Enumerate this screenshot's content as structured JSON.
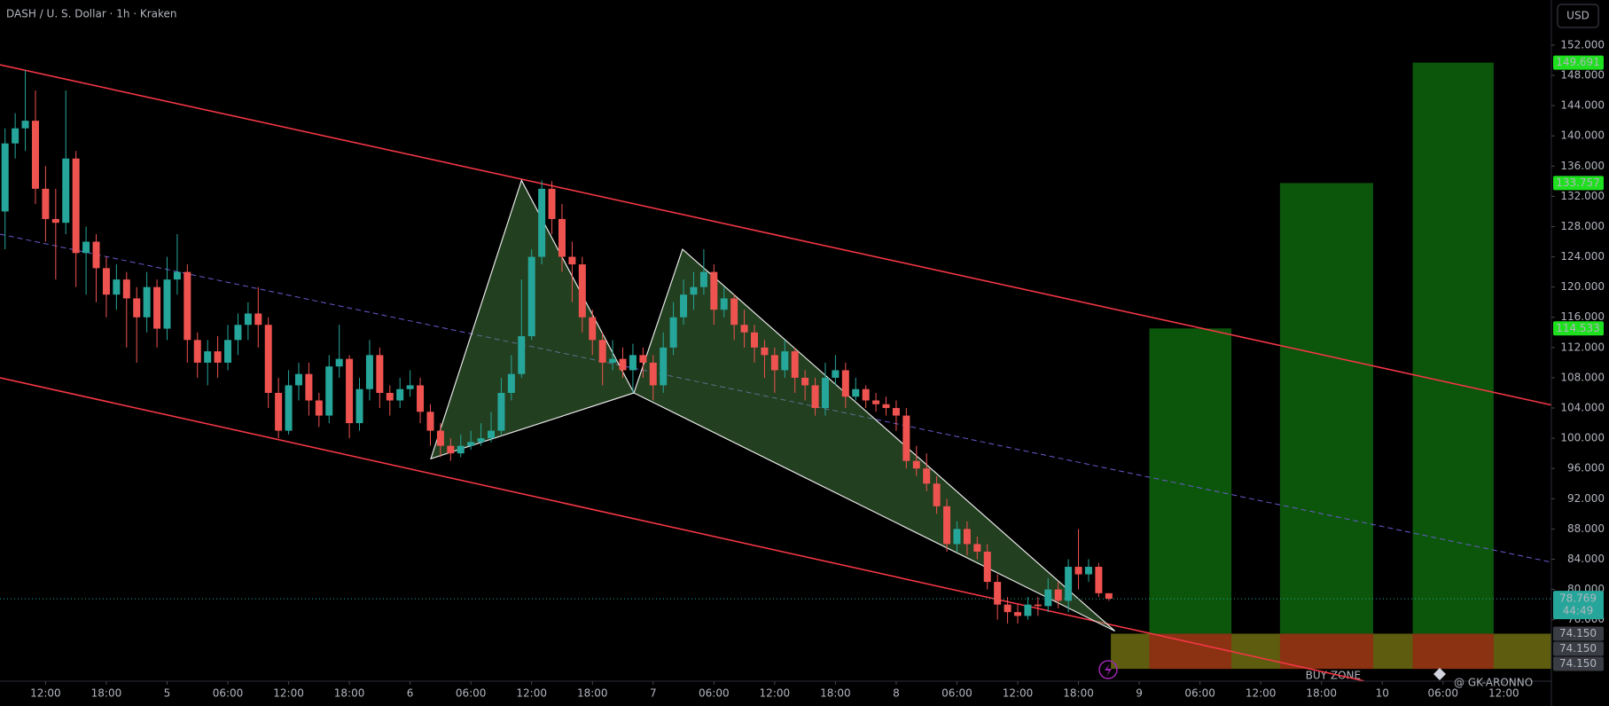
{
  "chart_data": {
    "type": "candlestick",
    "title": "DASH / U. S. Dollar · 1h · Kraken",
    "currency": "USD",
    "watermark": "@ GK-ARONNO",
    "up_color": "#26a69a",
    "down_color": "#ef5350",
    "grid": false,
    "xlim": [
      -0.5,
      152.7
    ],
    "ylim": [
      67.87,
      157.97
    ],
    "open": [
      130,
      139,
      141,
      142,
      133,
      129,
      128.5,
      137,
      124.5,
      126,
      122.5,
      119,
      121,
      118.5,
      116,
      120,
      114.5,
      121,
      122,
      113,
      110,
      111.5,
      110,
      113,
      115,
      116.5,
      115,
      106,
      101,
      107,
      108.5,
      105,
      103,
      109.5,
      110.5,
      102,
      106.5,
      111,
      106,
      105,
      106.5,
      107,
      103.5,
      101,
      99,
      98,
      99,
      99.5,
      100,
      101,
      106,
      108.5,
      113.5,
      124,
      133,
      129,
      124,
      123,
      116,
      113,
      110,
      110.5,
      109,
      111,
      110,
      107,
      112,
      116,
      119,
      120,
      122,
      117,
      118.5,
      115,
      114,
      112,
      111,
      109,
      111.5,
      108,
      107,
      104,
      108,
      109,
      105.5,
      106.5,
      105,
      104.5,
      104,
      103,
      97,
      96,
      94,
      91,
      86,
      88,
      86,
      85,
      81,
      78,
      77,
      76.5,
      78,
      77.8,
      80,
      78.5,
      83,
      82,
      83,
      79.5
    ],
    "high": [
      141,
      143,
      148.7,
      146,
      136,
      133,
      146,
      138,
      128,
      127,
      124,
      123,
      122,
      120,
      122,
      121,
      124,
      127,
      123,
      114,
      113,
      113.5,
      115,
      116.5,
      118,
      120,
      116,
      108,
      109,
      110,
      110,
      106,
      111,
      115,
      111,
      108,
      113,
      112,
      107,
      108,
      109,
      108,
      104.5,
      102,
      100,
      100.5,
      101,
      102,
      103.5,
      108,
      111,
      121,
      125,
      134.1,
      134,
      131,
      126,
      124,
      117,
      114,
      113,
      112,
      112.5,
      112,
      111,
      114,
      118,
      121,
      122,
      125,
      123,
      120,
      119,
      117,
      115,
      113,
      112,
      113,
      112,
      109,
      108,
      110,
      111,
      110,
      108,
      107,
      106,
      105.5,
      105,
      104,
      99,
      98,
      95,
      92,
      89,
      89,
      87,
      86,
      82,
      79,
      78,
      79,
      79,
      81.5,
      81,
      84,
      88,
      84,
      83.5,
      79.5
    ],
    "low": [
      125,
      137,
      138,
      131,
      126,
      121,
      127,
      120,
      119,
      118,
      116,
      117,
      112,
      110,
      114,
      112,
      113,
      119,
      110,
      108,
      107,
      108,
      109,
      111,
      113,
      112,
      104,
      100,
      100.5,
      105,
      103,
      101.5,
      102,
      108,
      100,
      101,
      105,
      104,
      103,
      104,
      105.5,
      102,
      99,
      97.5,
      97,
      97.5,
      98.5,
      99,
      99.5,
      100.5,
      105,
      108,
      113,
      123,
      127,
      122,
      118,
      114,
      111,
      107,
      109,
      108,
      106,
      108,
      105,
      106,
      111,
      115,
      117,
      119,
      115,
      116,
      113,
      112,
      110,
      108,
      106,
      108,
      106,
      105,
      103,
      103,
      107,
      104,
      105,
      104,
      103.5,
      103,
      101,
      96,
      95,
      93,
      90,
      85,
      85,
      84.5,
      84,
      80,
      76,
      75.5,
      75.5,
      76,
      76.5,
      77,
      77.5,
      77,
      80,
      81,
      79,
      78.5
    ],
    "close": [
      139,
      141,
      142,
      133,
      129,
      128.5,
      137,
      124.5,
      126,
      122.5,
      119,
      121,
      118.5,
      116,
      120,
      114.5,
      121,
      122,
      113,
      110,
      111.5,
      110,
      113,
      115,
      116.5,
      115,
      106,
      101,
      107,
      108.5,
      105,
      103,
      109.5,
      110.5,
      102,
      106.5,
      111,
      106,
      105,
      106.5,
      107,
      103.5,
      101,
      99,
      98,
      99,
      99.5,
      100,
      101,
      106,
      108.5,
      113.5,
      124,
      133,
      129,
      124,
      123,
      116,
      113,
      110,
      110.5,
      109,
      111,
      110,
      107,
      112,
      116,
      119,
      120,
      122,
      117,
      118.5,
      115,
      114,
      112,
      111,
      109,
      111.5,
      108,
      107,
      104,
      108,
      109,
      105.5,
      106.5,
      105,
      104.5,
      104,
      103,
      97,
      96,
      94,
      91,
      86,
      88,
      86,
      85,
      81,
      78,
      77,
      76.5,
      78,
      77.8,
      80,
      78.5,
      83,
      82,
      83,
      79.5,
      78.769
    ],
    "yticks": [
      {
        "value": 152,
        "label": "152.000"
      },
      {
        "value": 148,
        "label": "148.000"
      },
      {
        "value": 144,
        "label": "144.000"
      },
      {
        "value": 140,
        "label": "140.000"
      },
      {
        "value": 136,
        "label": "136.000"
      },
      {
        "value": 132,
        "label": "132.000"
      },
      {
        "value": 128,
        "label": "128.000"
      },
      {
        "value": 124,
        "label": "124.000"
      },
      {
        "value": 120,
        "label": "120.000"
      },
      {
        "value": 116,
        "label": "116.000"
      },
      {
        "value": 112,
        "label": "112.000"
      },
      {
        "value": 108,
        "label": "108.000"
      },
      {
        "value": 104,
        "label": "104.000"
      },
      {
        "value": 100,
        "label": "100.000"
      },
      {
        "value": 96,
        "label": "96.000"
      },
      {
        "value": 92,
        "label": "92.000"
      },
      {
        "value": 88,
        "label": "88.000"
      },
      {
        "value": 84,
        "label": "84.000"
      },
      {
        "value": 80,
        "label": "80.000"
      },
      {
        "value": 76,
        "label": "76.000"
      }
    ],
    "xticks": [
      {
        "value": 4,
        "label": "12:00"
      },
      {
        "value": 10,
        "label": "18:00"
      },
      {
        "value": 16,
        "label": "5"
      },
      {
        "value": 22,
        "label": "06:00"
      },
      {
        "value": 28,
        "label": "12:00"
      },
      {
        "value": 34,
        "label": "18:00"
      },
      {
        "value": 40,
        "label": "6"
      },
      {
        "value": 46,
        "label": "06:00"
      },
      {
        "value": 52,
        "label": "12:00"
      },
      {
        "value": 58,
        "label": "18:00"
      },
      {
        "value": 64,
        "label": "7"
      },
      {
        "value": 70,
        "label": "06:00"
      },
      {
        "value": 76,
        "label": "12:00"
      },
      {
        "value": 82,
        "label": "18:00"
      },
      {
        "value": 88,
        "label": "8"
      },
      {
        "value": 94,
        "label": "06:00"
      },
      {
        "value": 100,
        "label": "12:00"
      },
      {
        "value": 106,
        "label": "18:00"
      },
      {
        "value": 112,
        "label": "9"
      },
      {
        "value": 118,
        "label": "06:00"
      },
      {
        "value": 124,
        "label": "12:00"
      },
      {
        "value": 130,
        "label": "18:00"
      },
      {
        "value": 136,
        "label": "10"
      },
      {
        "value": 142,
        "label": "06:00"
      },
      {
        "value": 148,
        "label": "12:00"
      }
    ],
    "last_price": 78.769,
    "countdown": "44:49",
    "channel_lines": [
      {
        "points": [
          [
            -0.5,
            149.4
          ],
          [
            152.7,
            104.4
          ]
        ],
        "color": "#f23645"
      },
      {
        "points": [
          [
            -0.5,
            108.0
          ],
          [
            134.2,
            67.9
          ]
        ],
        "color": "#f23645"
      }
    ],
    "mid_line": {
      "points": [
        [
          -0.5,
          127.0
        ],
        [
          152.7,
          83.6
        ]
      ],
      "color": "#6a5acd"
    },
    "pattern": [
      [
        42.05,
        97.3
      ],
      [
        51,
        134.1
      ],
      [
        62.1,
        106.0
      ],
      [
        66.9,
        125.0
      ],
      [
        109.6,
        74.5
      ]
    ],
    "buy_zone": {
      "label": "BUY ZONE",
      "start": 109.2,
      "top": 74.15,
      "bottom": 69.5,
      "price_labels": [
        {
          "value": 74.15,
          "label": "74.150"
        },
        {
          "value": 74.15,
          "label": "74.150"
        },
        {
          "value": 74.15,
          "label": "74.150"
        }
      ]
    },
    "targets": [
      {
        "start": 113.0,
        "end": 121.1,
        "value": 114.533
      },
      {
        "start": 125.9,
        "end": 135.1,
        "value": 133.757
      },
      {
        "start": 139.0,
        "end": 147.0,
        "value": 149.691
      }
    ]
  }
}
